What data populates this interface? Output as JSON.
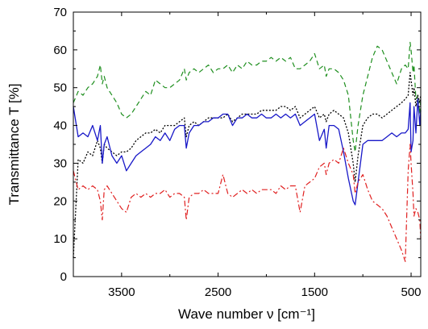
{
  "chart_data": {
    "type": "line",
    "title": "",
    "xlabel": "Wave number ν [cm⁻¹]",
    "ylabel": "Transmittance T [%]",
    "xlim": [
      4000,
      400
    ],
    "ylim": [
      0,
      70
    ],
    "x_reversed": true,
    "grid": false,
    "legend": "none",
    "x_ticks": [
      3500,
      2500,
      1500,
      500
    ],
    "y_ticks": [
      0,
      10,
      20,
      30,
      40,
      50,
      60,
      70
    ],
    "series": [
      {
        "color": "#1f8f1f",
        "style": "dashed",
        "x": [
          4000,
          3950,
          3900,
          3850,
          3800,
          3750,
          3720,
          3700,
          3680,
          3650,
          3600,
          3550,
          3500,
          3450,
          3400,
          3350,
          3300,
          3250,
          3200,
          3150,
          3100,
          3050,
          3000,
          2950,
          2900,
          2850,
          2830,
          2800,
          2750,
          2700,
          2650,
          2600,
          2550,
          2500,
          2450,
          2400,
          2350,
          2300,
          2250,
          2200,
          2150,
          2100,
          2050,
          2000,
          1950,
          1900,
          1850,
          1800,
          1750,
          1700,
          1650,
          1600,
          1550,
          1500,
          1450,
          1400,
          1380,
          1350,
          1300,
          1250,
          1200,
          1150,
          1100,
          1080,
          1050,
          1000,
          950,
          900,
          850,
          800,
          750,
          700,
          650,
          600,
          560,
          530,
          510,
          500,
          480,
          470,
          450,
          430,
          410,
          400
        ],
        "y": [
          46,
          49,
          48,
          50,
          51,
          53,
          56,
          51,
          53,
          50,
          48,
          46,
          43,
          42,
          43,
          45,
          47,
          49,
          48,
          52,
          51,
          50,
          50,
          51,
          52,
          55,
          52,
          54,
          55,
          54,
          55,
          56,
          54,
          55,
          55,
          56,
          54,
          56,
          55,
          57,
          56,
          56,
          57,
          57,
          58,
          57,
          58,
          57,
          58,
          55,
          55,
          56,
          57,
          59,
          55,
          56,
          53,
          55,
          55,
          54,
          52,
          48,
          36,
          33,
          40,
          48,
          53,
          58,
          61,
          60,
          57,
          54,
          51,
          55,
          56,
          55,
          62,
          60,
          54,
          56,
          47,
          48,
          43,
          47
        ]
      },
      {
        "color": "#000000",
        "style": "dotted",
        "x": [
          4000,
          3950,
          3900,
          3850,
          3800,
          3750,
          3720,
          3700,
          3680,
          3650,
          3600,
          3550,
          3500,
          3450,
          3400,
          3350,
          3300,
          3250,
          3200,
          3150,
          3100,
          3050,
          3000,
          2950,
          2900,
          2850,
          2830,
          2800,
          2750,
          2700,
          2650,
          2600,
          2550,
          2500,
          2450,
          2400,
          2350,
          2300,
          2250,
          2200,
          2150,
          2100,
          2050,
          2000,
          1950,
          1900,
          1850,
          1800,
          1750,
          1700,
          1650,
          1600,
          1550,
          1500,
          1450,
          1400,
          1380,
          1350,
          1300,
          1250,
          1200,
          1150,
          1100,
          1080,
          1050,
          1000,
          950,
          900,
          850,
          800,
          750,
          700,
          650,
          600,
          560,
          530,
          510,
          500,
          480,
          470,
          450,
          430,
          410,
          400
        ],
        "y": [
          5,
          31,
          30,
          33,
          32,
          36,
          34,
          30,
          35,
          34,
          33,
          32,
          33,
          33,
          34,
          36,
          37,
          38,
          38,
          39,
          38,
          40,
          40,
          40,
          41,
          42,
          37,
          40,
          41,
          40,
          41,
          42,
          42,
          42,
          42,
          43,
          41,
          42,
          43,
          43,
          43,
          43,
          44,
          44,
          44,
          44,
          45,
          45,
          44,
          45,
          42,
          43,
          44,
          45,
          42,
          43,
          41,
          43,
          44,
          43,
          42,
          38,
          30,
          25,
          32,
          40,
          42,
          43,
          43,
          42,
          43,
          44,
          45,
          46,
          47,
          48,
          54,
          52,
          48,
          50,
          45,
          48,
          46,
          48
        ]
      },
      {
        "color": "#1818c8",
        "style": "solid",
        "x": [
          4000,
          3950,
          3900,
          3850,
          3800,
          3750,
          3720,
          3700,
          3680,
          3650,
          3600,
          3550,
          3500,
          3450,
          3400,
          3350,
          3300,
          3250,
          3200,
          3150,
          3100,
          3050,
          3000,
          2950,
          2900,
          2850,
          2830,
          2800,
          2750,
          2700,
          2650,
          2600,
          2550,
          2500,
          2450,
          2400,
          2350,
          2300,
          2250,
          2200,
          2150,
          2100,
          2050,
          2000,
          1950,
          1900,
          1850,
          1800,
          1750,
          1700,
          1650,
          1600,
          1550,
          1500,
          1450,
          1400,
          1380,
          1350,
          1300,
          1250,
          1200,
          1150,
          1100,
          1080,
          1050,
          1000,
          950,
          900,
          850,
          800,
          750,
          700,
          650,
          600,
          560,
          530,
          510,
          500,
          480,
          470,
          450,
          430,
          410,
          400
        ],
        "y": [
          45,
          37,
          38,
          37,
          40,
          36,
          40,
          30,
          35,
          37,
          32,
          30,
          32,
          28,
          30,
          32,
          33,
          34,
          35,
          37,
          36,
          38,
          36,
          39,
          40,
          40,
          34,
          38,
          40,
          40,
          41,
          41,
          42,
          42,
          43,
          43,
          40,
          42,
          42,
          43,
          42,
          42,
          43,
          42,
          42,
          43,
          42,
          43,
          42,
          43,
          40,
          41,
          42,
          43,
          36,
          39,
          34,
          40,
          40,
          39,
          33,
          26,
          20,
          19,
          25,
          35,
          36,
          36,
          36,
          36,
          37,
          38,
          37,
          38,
          38,
          39,
          46,
          33,
          36,
          45,
          38,
          47,
          40,
          44
        ]
      },
      {
        "color": "#e02020",
        "style": "dashdot",
        "x": [
          4000,
          3950,
          3900,
          3850,
          3800,
          3750,
          3720,
          3700,
          3680,
          3650,
          3600,
          3550,
          3500,
          3450,
          3400,
          3350,
          3300,
          3250,
          3200,
          3150,
          3100,
          3050,
          3000,
          2950,
          2900,
          2850,
          2830,
          2800,
          2750,
          2700,
          2650,
          2600,
          2550,
          2500,
          2450,
          2400,
          2350,
          2300,
          2250,
          2200,
          2150,
          2100,
          2050,
          2000,
          1950,
          1900,
          1850,
          1800,
          1750,
          1700,
          1650,
          1600,
          1550,
          1500,
          1450,
          1400,
          1380,
          1350,
          1300,
          1250,
          1200,
          1150,
          1100,
          1080,
          1050,
          1000,
          950,
          900,
          850,
          800,
          750,
          700,
          650,
          600,
          560,
          530,
          510,
          500,
          480,
          470,
          450,
          430,
          410,
          400
        ],
        "y": [
          28,
          23,
          24,
          23,
          24,
          23,
          20,
          15,
          23,
          24,
          22,
          20,
          18,
          17,
          21,
          22,
          21,
          22,
          21,
          22,
          22,
          23,
          21,
          22,
          22,
          21,
          15,
          21,
          22,
          22,
          23,
          22,
          22,
          22,
          27,
          22,
          21,
          22,
          23,
          22,
          23,
          22,
          23,
          23,
          23,
          22,
          24,
          23,
          24,
          24,
          17,
          24,
          25,
          26,
          29,
          30,
          27,
          30,
          31,
          30,
          34,
          30,
          27,
          22,
          25,
          27,
          23,
          20,
          19,
          18,
          16,
          13,
          10,
          7,
          4,
          28,
          35,
          30,
          22,
          16,
          18,
          17,
          15,
          10
        ]
      }
    ]
  }
}
